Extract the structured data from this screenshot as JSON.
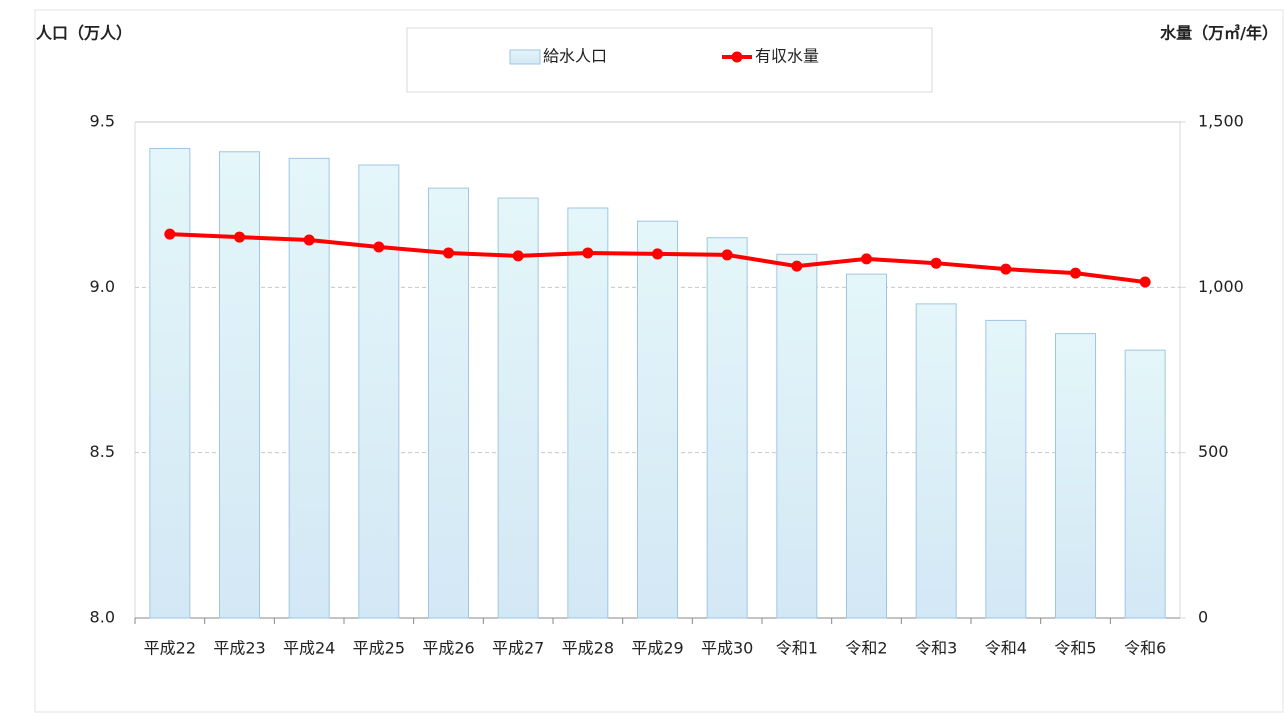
{
  "chart_data": {
    "type": "bar",
    "y_label": "人口（万人）",
    "y2_label": "水量（万㎥/年）",
    "categories": [
      "平成22",
      "平成23",
      "平成24",
      "平成25",
      "平成26",
      "平成27",
      "平成28",
      "平成29",
      "平成30",
      "令和1",
      "令和2",
      "令和3",
      "令和4",
      "令和5",
      "令和6"
    ],
    "series": [
      {
        "name": "給水人口",
        "type": "bar",
        "axis": "y",
        "color": "#d6ecf6",
        "values": [
          9.42,
          9.41,
          9.39,
          9.37,
          9.3,
          9.27,
          9.24,
          9.2,
          9.15,
          9.1,
          9.04,
          8.95,
          8.9,
          8.86,
          8.81
        ]
      },
      {
        "name": "有収水量",
        "type": "line",
        "axis": "y2",
        "color": "#ff0000",
        "values": [
          1161,
          1152,
          1143,
          1122,
          1104,
          1095,
          1104,
          1101,
          1098,
          1064,
          1086,
          1073,
          1055,
          1043,
          1016
        ]
      }
    ],
    "ylim": [
      8.0,
      9.5
    ],
    "yticks": [
      {
        "value": 8.0,
        "label": "8.0"
      },
      8.5,
      {
        "value": 9.0,
        "label": "9.0"
      },
      9.5
    ],
    "y2lim": [
      0,
      1500
    ],
    "y2ticks": [
      0,
      500,
      {
        "value": 1000,
        "label": "1,000"
      },
      {
        "value": 1500,
        "label": "1,500"
      }
    ],
    "grid": true,
    "legend": "top"
  }
}
